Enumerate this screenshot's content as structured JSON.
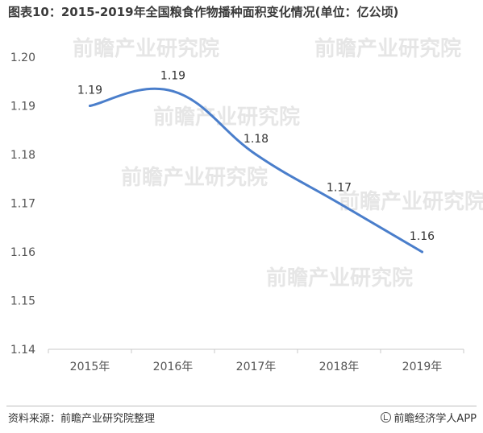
{
  "title": "图表10：2015-2019年全国粮食作物播种面积变化情况(单位：亿公顷)",
  "watermark": "前瞻产业研究院",
  "footer": {
    "source": "资料来源：前瞻产业研究院整理",
    "brand": "前瞻经济学人APP",
    "brand_icon": "brand-logo-icon"
  },
  "chart_data": {
    "type": "line",
    "title": "图表10：2015-2019年全国粮食作物播种面积变化情况(单位：亿公顷)",
    "categories": [
      "2015年",
      "2016年",
      "2017年",
      "2018年",
      "2019年"
    ],
    "series": [
      {
        "values": [
          1.19,
          1.193,
          1.18,
          1.17,
          1.16
        ],
        "labels": [
          "1.19",
          "1.19",
          "1.18",
          "1.17",
          "1.16"
        ],
        "color": "#4a7ecb"
      }
    ],
    "ylim": [
      1.14,
      1.2
    ],
    "yticks": [
      "1.14",
      "1.15",
      "1.16",
      "1.17",
      "1.18",
      "1.19",
      "1.20"
    ],
    "grid": false,
    "smooth": true
  }
}
